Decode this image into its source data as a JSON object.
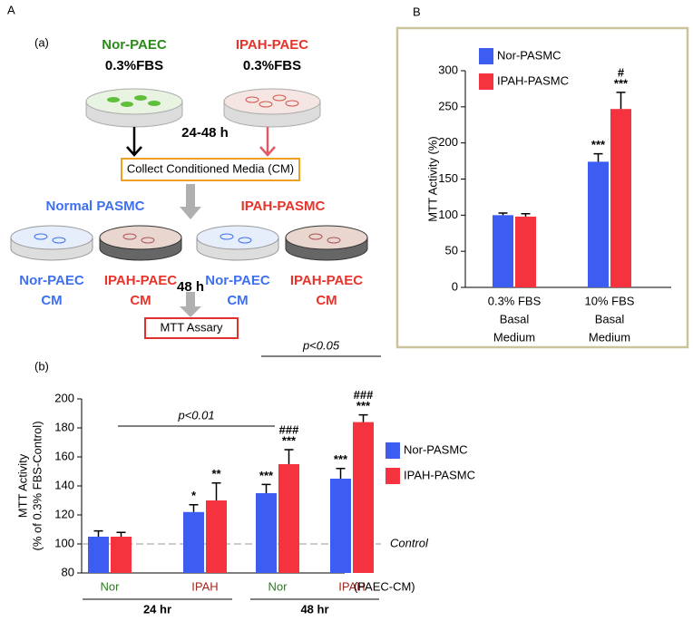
{
  "diagram": {
    "panel_label": "A",
    "subpanel_label": "(a)",
    "sources": [
      {
        "name": "Nor-PAEC",
        "medium": "0.3%FBS"
      },
      {
        "name": "IPAH-PAEC",
        "medium": "0.3%FBS"
      }
    ],
    "incubation_1": "24-48 h",
    "collect": "Collect Conditioned Media (CM)",
    "targets": [
      "Normal PASMC",
      "IPAH-PASMC"
    ],
    "incubation_2": "48 h",
    "treatments": [
      [
        "Nor-PAEC",
        "CM"
      ],
      [
        "IPAH-PAEC",
        "CM"
      ],
      [
        "Nor-PAEC",
        "CM"
      ],
      [
        "IPAH-PAEC",
        "CM"
      ]
    ],
    "assay": "MTT Assary"
  },
  "chart_data": [
    {
      "type": "bar",
      "panel_label": "B",
      "y_label": [
        "MTT Activity (%)"
      ],
      "categories": [
        [
          "0.3% FBS",
          "Basal",
          "Medium"
        ],
        [
          "10% FBS",
          "Basal",
          "Medium"
        ]
      ],
      "series": [
        {
          "name": "Nor-PASMC",
          "color": "#3d5cf2",
          "values": [
            100,
            174
          ],
          "errors": [
            3,
            11
          ],
          "significance": [
            null,
            [
              "***"
            ]
          ]
        },
        {
          "name": "IPAH-PASMC",
          "color": "#f5333f",
          "values": [
            98,
            247
          ],
          "errors": [
            4,
            23
          ],
          "significance": [
            null,
            [
              "#",
              "***"
            ]
          ]
        }
      ],
      "ylim": [
        0,
        300
      ],
      "yticks": [
        0,
        50,
        100,
        150,
        200,
        250,
        300
      ],
      "legend": "top-left"
    },
    {
      "type": "bar",
      "panel_label": "(b)",
      "y_label": [
        "MTT Activity",
        "(% of 0.3% FBS-Control)"
      ],
      "categories": [
        [
          "Nor"
        ],
        [
          "IPAH"
        ],
        [
          "Nor"
        ],
        [
          "IPAH"
        ]
      ],
      "category_colors": [
        "#2b7a1f",
        "#a3261f",
        "#2b7a1f",
        "#a3261f"
      ],
      "groups": [
        "24 hr",
        "48 hr"
      ],
      "x_label": "(PAEC-CM)",
      "series": [
        {
          "name": "Nor-PASMC",
          "color": "#3d5cf2",
          "values": [
            105,
            122,
            135,
            145
          ],
          "errors": [
            4,
            5,
            6,
            7
          ],
          "significance": [
            null,
            [
              "*"
            ],
            [
              "***"
            ],
            [
              "***"
            ]
          ]
        },
        {
          "name": "IPAH-PASMC",
          "color": "#f5333f",
          "values": [
            105,
            130,
            155,
            184
          ],
          "errors": [
            3,
            12,
            10,
            5
          ],
          "significance": [
            null,
            [
              "**"
            ],
            [
              "###",
              "***"
            ],
            [
              "###",
              "***"
            ]
          ]
        }
      ],
      "reference_line": {
        "value": 100,
        "label": "Control"
      },
      "brackets": [
        "p<0.01",
        "p<0.05"
      ],
      "ylim": [
        80,
        200
      ],
      "yticks": [
        80,
        100,
        120,
        140,
        160,
        180,
        200
      ],
      "legend": "right"
    }
  ]
}
